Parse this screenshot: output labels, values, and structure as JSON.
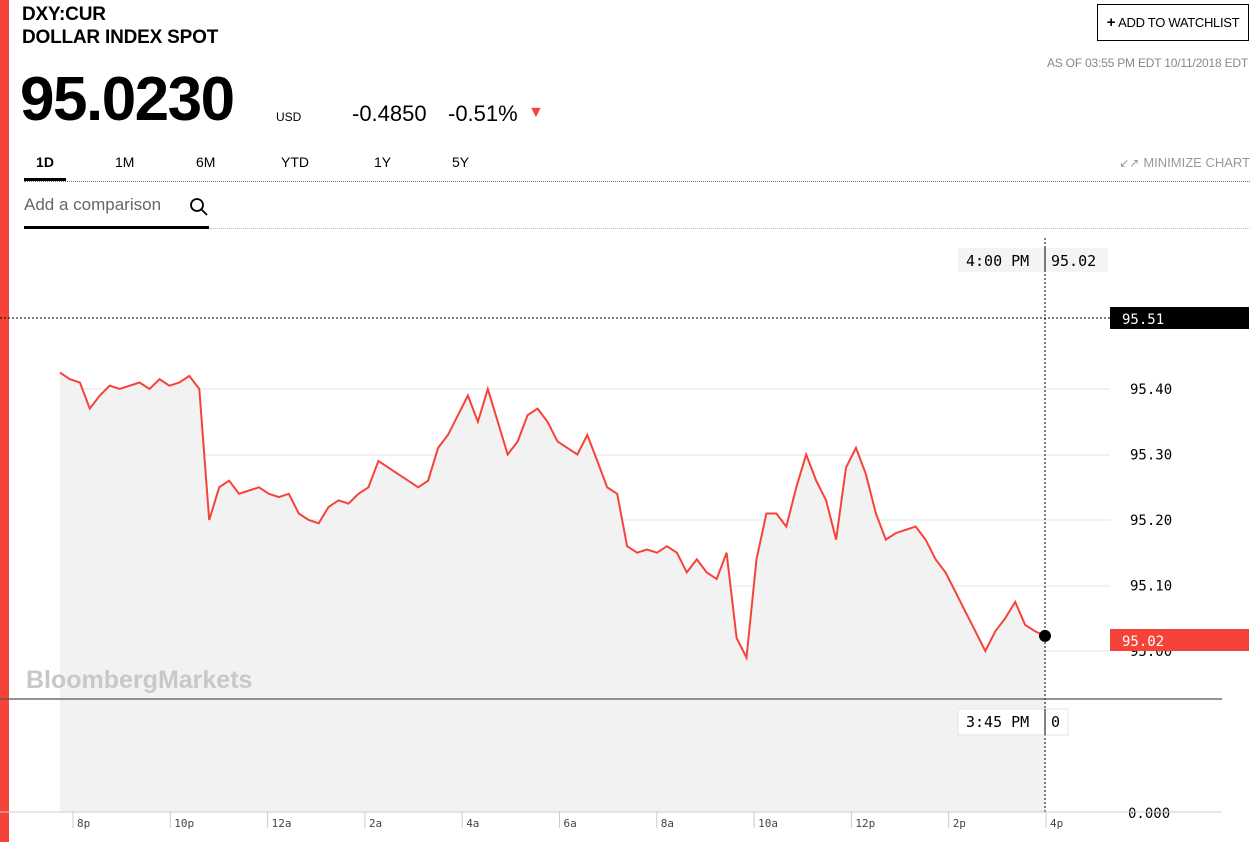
{
  "header": {
    "ticker": "DXY:CUR",
    "name": "DOLLAR INDEX SPOT",
    "price": "95.0230",
    "currency": "USD",
    "change": "-0.4850",
    "change_pct": "-0.51%",
    "watchlist_label": "ADD TO WATCHLIST",
    "as_of": "AS OF 03:55 PM EDT 10/11/2018 EDT"
  },
  "tabs": [
    {
      "label": "1D",
      "active": true
    },
    {
      "label": "1M",
      "active": false
    },
    {
      "label": "6M",
      "active": false
    },
    {
      "label": "YTD",
      "active": false
    },
    {
      "label": "1Y",
      "active": false
    },
    {
      "label": "5Y",
      "active": false
    }
  ],
  "minimize_label": "MINIMIZE CHART",
  "comparison_placeholder": "Add a comparison",
  "watermark": "BloombergMarkets",
  "colors": {
    "accent": "#f6433a",
    "line": "#f6433a",
    "area": "#f2f2f2"
  },
  "chart_data": {
    "type": "line",
    "x_ticks": [
      "8p",
      "10p",
      "12a",
      "2a",
      "4a",
      "6a",
      "8a",
      "10a",
      "12p",
      "2p",
      "4p"
    ],
    "y_ticks": [
      "95.40",
      "95.30",
      "95.20",
      "95.10",
      "95.00"
    ],
    "volume_axis_label": "0.000",
    "previous_close": "95.51",
    "last_value": "95.02",
    "cursor_time": "4:00 PM",
    "cursor_value": "95.02",
    "volume_cursor_time": "3:45 PM",
    "volume_cursor_value": "0",
    "ylim": [
      95.0,
      95.51
    ],
    "series": [
      {
        "values": [
          95.425,
          95.415,
          95.41,
          95.37,
          95.39,
          95.405,
          95.4,
          95.405,
          95.41,
          95.4,
          95.415,
          95.405,
          95.41,
          95.42,
          95.4,
          95.2,
          95.25,
          95.26,
          95.24,
          95.245,
          95.25,
          95.24,
          95.235,
          95.24,
          95.21,
          95.2,
          95.195,
          95.22,
          95.23,
          95.225,
          95.24,
          95.25,
          95.29,
          95.28,
          95.27,
          95.26,
          95.25,
          95.26,
          95.31,
          95.33,
          95.36,
          95.39,
          95.35,
          95.4,
          95.35,
          95.3,
          95.32,
          95.36,
          95.37,
          95.35,
          95.32,
          95.31,
          95.3,
          95.33,
          95.29,
          95.25,
          95.24,
          95.16,
          95.15,
          95.155,
          95.15,
          95.16,
          95.15,
          95.12,
          95.14,
          95.12,
          95.11,
          95.15,
          95.02,
          94.99,
          95.14,
          95.21,
          95.21,
          95.19,
          95.25,
          95.3,
          95.26,
          95.23,
          95.17,
          95.28,
          95.31,
          95.27,
          95.21,
          95.17,
          95.18,
          95.185,
          95.19,
          95.17,
          95.14,
          95.12,
          95.09,
          95.06,
          95.03,
          95.0,
          95.03,
          95.05,
          95.075,
          95.04,
          95.03,
          95.023
        ]
      }
    ]
  }
}
